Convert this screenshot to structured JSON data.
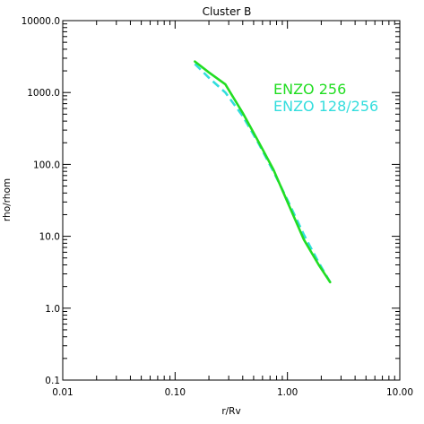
{
  "chart_data": {
    "type": "line",
    "title": "Cluster B",
    "xlabel": "r/Rv",
    "ylabel": "rho/rhom",
    "x_scale": "log",
    "y_scale": "log",
    "xlim": [
      0.01,
      10.0
    ],
    "ylim": [
      0.1,
      10000.0
    ],
    "x_ticks": [
      0.01,
      0.1,
      1.0,
      10.0
    ],
    "x_tick_labels": [
      "0.01",
      "0.10",
      "1.00",
      "10.00"
    ],
    "y_ticks": [
      0.1,
      1.0,
      10.0,
      100.0,
      1000.0,
      10000.0
    ],
    "y_tick_labels": [
      "0.1",
      "1.0",
      "10.0",
      "100.0",
      "1000.0",
      "10000.0"
    ],
    "grid": false,
    "legend_position": "top-right",
    "series": [
      {
        "name": "ENZO 256",
        "color": "#22dd22",
        "style": "solid",
        "x": [
          0.15,
          0.2,
          0.28,
          0.4,
          0.55,
          0.75,
          1.0,
          1.4,
          1.9,
          2.4
        ],
        "y": [
          2700,
          1900,
          1300,
          520,
          210,
          85,
          30,
          9.0,
          4.0,
          2.3
        ]
      },
      {
        "name": "ENZO 128/256",
        "color": "#33dddd",
        "style": "dashed",
        "x": [
          0.15,
          0.2,
          0.28,
          0.4,
          0.55,
          0.75,
          1.0,
          1.4,
          1.9,
          2.4
        ],
        "y": [
          2500,
          1600,
          1000,
          470,
          200,
          80,
          32,
          10.5,
          4.3,
          2.3
        ]
      }
    ]
  }
}
